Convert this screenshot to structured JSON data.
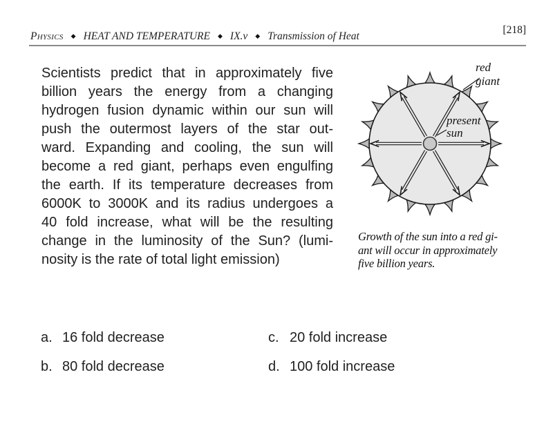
{
  "header": {
    "subject": "Physics",
    "separator": "◆",
    "section": "HEAT AND TEMPERATURE",
    "unit": "IX.v",
    "topic": "Transmission of Heat",
    "page_number": "[218]"
  },
  "question": {
    "lines": [
      "Scientists predict that in approximately five",
      "billion years the energy from a changing",
      "hydrogen fusion dynamic within our sun will",
      "push the outermost layers of the star out-",
      "ward.  Expanding and cooling, the sun will",
      "become a red giant, perhaps even engulfing",
      "the earth.  If its temperature decreases from",
      "6000K to 3000K and its radius undergoes a",
      "40 fold increase, what will be the resulting",
      "change in the luminosity of the Sun? (lumi-",
      "nosity is the rate of total light emission)"
    ]
  },
  "figure": {
    "red_giant_label": [
      "red",
      "giant"
    ],
    "present_sun_label": [
      "present",
      "sun"
    ],
    "caption_lines": [
      "Growth of the sun into a red gi-",
      "ant will occur in approximately",
      "five billion years."
    ]
  },
  "options": [
    {
      "letter": "a.",
      "text": "16 fold decrease"
    },
    {
      "letter": "b.",
      "text": "80 fold decrease"
    },
    {
      "letter": "c.",
      "text": "20 fold increase"
    },
    {
      "letter": "d.",
      "text": "100 fold increase"
    }
  ],
  "colors": {
    "page_background": "#ffffff",
    "text": "#1f1f1f",
    "rule": "#8a8a8a",
    "giant_disk_fill": "#e8e8e8",
    "spike_fill": "#b9b9b9",
    "outline": "#1a1a1a",
    "present_sun_fill": "#c9c9c9"
  }
}
